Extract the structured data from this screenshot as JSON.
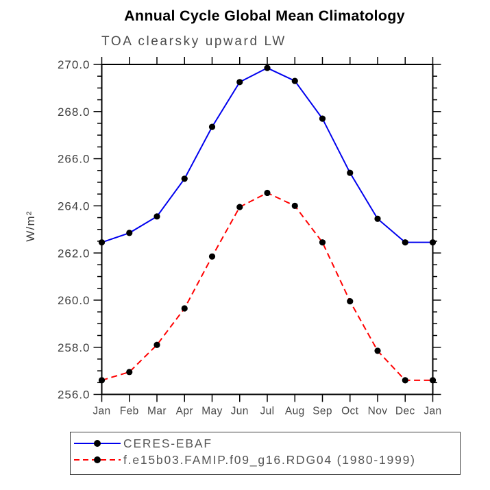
{
  "header": {
    "title": "Annual Cycle Global Mean Climatology",
    "subtitle": "TOA clearsky upward LW"
  },
  "chart_data": {
    "type": "line",
    "title": "Annual Cycle Global Mean Climatology",
    "subtitle": "TOA clearsky upward LW",
    "xlabel": "",
    "ylabel": "W/m²",
    "categories": [
      "Jan",
      "Feb",
      "Mar",
      "Apr",
      "May",
      "Jun",
      "Jul",
      "Aug",
      "Sep",
      "Oct",
      "Nov",
      "Dec",
      "Jan"
    ],
    "series": [
      {
        "name": "CERES-EBAF",
        "color": "#0000ee",
        "line_style": "solid",
        "marker": "filled-circle",
        "values": [
          262.45,
          262.85,
          263.55,
          265.15,
          267.35,
          269.25,
          269.85,
          269.3,
          267.7,
          265.4,
          263.45,
          262.45,
          262.45
        ]
      },
      {
        "name": "f.e15b03.FAMIP.f09_g16.RDG04 (1980-1999)",
        "color": "#ff0000",
        "line_style": "dashed",
        "marker": "filled-circle",
        "values": [
          256.6,
          256.95,
          258.1,
          259.65,
          261.85,
          263.95,
          264.55,
          264.0,
          262.45,
          259.95,
          257.85,
          256.6,
          256.6
        ]
      }
    ],
    "ylim": [
      256.0,
      270.0
    ],
    "ytick_step": 2.0,
    "yminor_step": 0.5,
    "ytick_labels": [
      "256.0",
      "258.0",
      "260.0",
      "262.0",
      "264.0",
      "266.0",
      "268.0",
      "270.0"
    ],
    "grid": false,
    "legend_position": "bottom-left-box",
    "marker_color": "#000000",
    "frame_color": "#000000",
    "tick_direction": "out"
  }
}
